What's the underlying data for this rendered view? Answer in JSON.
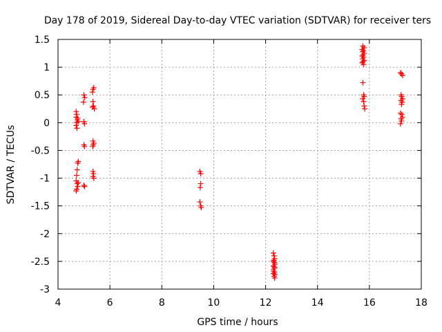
{
  "chart_data": {
    "type": "scatter",
    "title": "Day 178 of 2019, Sidereal Day-to-day VTEC variation (SDTVAR) for receiver ters",
    "xlabel": "GPS time / hours",
    "ylabel": "SDTVAR / TECUs",
    "xlim": [
      4,
      18
    ],
    "ylim": [
      -3,
      1.5
    ],
    "xticks": [
      4,
      6,
      8,
      10,
      12,
      14,
      16,
      18
    ],
    "yticks": [
      -3,
      -2.5,
      -2,
      -1.5,
      -1,
      -0.5,
      0,
      0.5,
      1,
      1.5
    ],
    "xtick_labels": [
      "4",
      "6",
      "8",
      "10",
      "12",
      "14",
      "16",
      "18"
    ],
    "ytick_labels": [
      "-3",
      "-2.5",
      "-2",
      "-1.5",
      "-1",
      "-0.5",
      "0",
      "0.5",
      "1",
      "1.5"
    ],
    "grid": true,
    "marker": "+",
    "marker_color": "#ff0000",
    "series": [
      {
        "name": "SDTVAR",
        "points": [
          [
            4.7,
            0.2
          ],
          [
            4.72,
            0.15
          ],
          [
            4.7,
            0.1
          ],
          [
            4.75,
            0.05
          ],
          [
            4.72,
            0.0
          ],
          [
            4.7,
            -0.05
          ],
          [
            4.73,
            -0.1
          ],
          [
            4.76,
            0.08
          ],
          [
            4.78,
            0.02
          ],
          [
            4.78,
            -0.7
          ],
          [
            4.76,
            -0.73
          ],
          [
            4.74,
            -0.85
          ],
          [
            4.72,
            -0.95
          ],
          [
            4.7,
            -1.05
          ],
          [
            4.74,
            -1.1
          ],
          [
            4.76,
            -1.15
          ],
          [
            4.72,
            -1.2
          ],
          [
            4.7,
            -1.23
          ],
          [
            4.78,
            -1.08
          ],
          [
            5.0,
            0.5
          ],
          [
            5.03,
            0.45
          ],
          [
            4.98,
            0.37
          ],
          [
            5.0,
            0.02
          ],
          [
            5.02,
            -0.02
          ],
          [
            5.0,
            -0.4
          ],
          [
            5.02,
            -0.43
          ],
          [
            5.0,
            -1.13
          ],
          [
            5.02,
            -1.15
          ],
          [
            5.35,
            0.6
          ],
          [
            5.38,
            0.63
          ],
          [
            5.33,
            0.55
          ],
          [
            5.35,
            0.38
          ],
          [
            5.37,
            0.3
          ],
          [
            5.4,
            0.25
          ],
          [
            5.33,
            0.28
          ],
          [
            5.35,
            -0.33
          ],
          [
            5.38,
            -0.37
          ],
          [
            5.36,
            -0.4
          ],
          [
            5.34,
            -0.43
          ],
          [
            5.35,
            -0.88
          ],
          [
            5.37,
            -0.92
          ],
          [
            5.35,
            -0.97
          ],
          [
            5.38,
            -1.0
          ],
          [
            9.47,
            -0.88
          ],
          [
            9.5,
            -0.92
          ],
          [
            9.5,
            -1.1
          ],
          [
            9.48,
            -1.17
          ],
          [
            9.47,
            -1.43
          ],
          [
            9.5,
            -1.5
          ],
          [
            9.52,
            -1.53
          ],
          [
            12.3,
            -2.35
          ],
          [
            12.33,
            -2.4
          ],
          [
            12.35,
            -2.45
          ],
          [
            12.32,
            -2.48
          ],
          [
            12.3,
            -2.5
          ],
          [
            12.34,
            -2.52
          ],
          [
            12.36,
            -2.55
          ],
          [
            12.3,
            -2.58
          ],
          [
            12.33,
            -2.6
          ],
          [
            12.35,
            -2.62
          ],
          [
            12.3,
            -2.65
          ],
          [
            12.32,
            -2.68
          ],
          [
            12.34,
            -2.7
          ],
          [
            12.3,
            -2.72
          ],
          [
            12.36,
            -2.74
          ],
          [
            12.33,
            -2.77
          ],
          [
            12.35,
            -2.8
          ],
          [
            15.75,
            1.38
          ],
          [
            15.8,
            1.35
          ],
          [
            15.72,
            1.32
          ],
          [
            15.78,
            1.3
          ],
          [
            15.74,
            1.28
          ],
          [
            15.8,
            1.25
          ],
          [
            15.76,
            1.22
          ],
          [
            15.72,
            1.2
          ],
          [
            15.78,
            1.18
          ],
          [
            15.74,
            1.15
          ],
          [
            15.8,
            1.12
          ],
          [
            15.76,
            1.1
          ],
          [
            15.72,
            1.08
          ],
          [
            15.78,
            1.05
          ],
          [
            15.75,
            0.72
          ],
          [
            15.78,
            0.5
          ],
          [
            15.8,
            0.47
          ],
          [
            15.74,
            0.43
          ],
          [
            15.78,
            0.38
          ],
          [
            15.8,
            0.3
          ],
          [
            15.82,
            0.25
          ],
          [
            17.2,
            0.9
          ],
          [
            17.24,
            0.88
          ],
          [
            17.28,
            0.85
          ],
          [
            17.22,
            0.5
          ],
          [
            17.25,
            0.47
          ],
          [
            17.28,
            0.43
          ],
          [
            17.22,
            0.4
          ],
          [
            17.26,
            0.37
          ],
          [
            17.24,
            0.33
          ],
          [
            17.2,
            0.17
          ],
          [
            17.25,
            0.15
          ],
          [
            17.28,
            0.1
          ],
          [
            17.22,
            0.07
          ],
          [
            17.24,
            0.03
          ],
          [
            17.2,
            -0.02
          ]
        ]
      }
    ]
  }
}
